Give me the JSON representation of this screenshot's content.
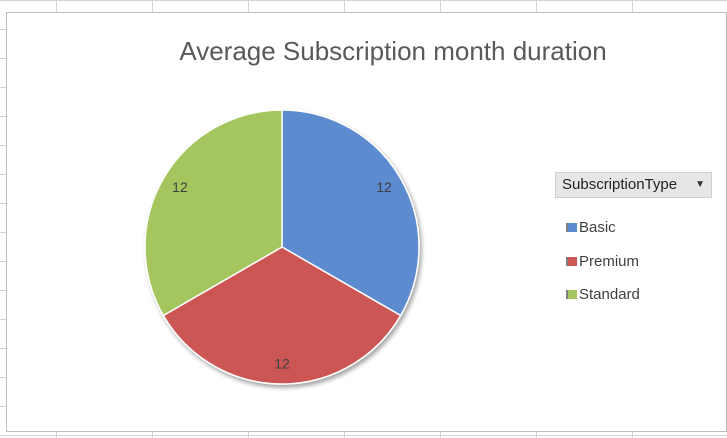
{
  "chart": {
    "title": "Average Subscription month duration",
    "legend": {
      "header": "SubscriptionType",
      "dropdown_icon": "dropdown-arrow-icon",
      "items": [
        {
          "label": "Basic",
          "color": "#5B8BCF"
        },
        {
          "label": "Premium",
          "color": "#CB5653"
        },
        {
          "label": "Standard",
          "color": "#A5C55F"
        }
      ]
    }
  },
  "chart_data": {
    "type": "pie",
    "title": "Average Subscription month duration",
    "legend_title": "SubscriptionType",
    "legend_position": "right",
    "categories": [
      "Basic",
      "Premium",
      "Standard"
    ],
    "values": [
      12,
      12,
      12
    ],
    "data_labels": [
      "12",
      "12",
      "12"
    ],
    "colors": [
      "#5B8BCF",
      "#CB5653",
      "#A5C55F"
    ]
  }
}
